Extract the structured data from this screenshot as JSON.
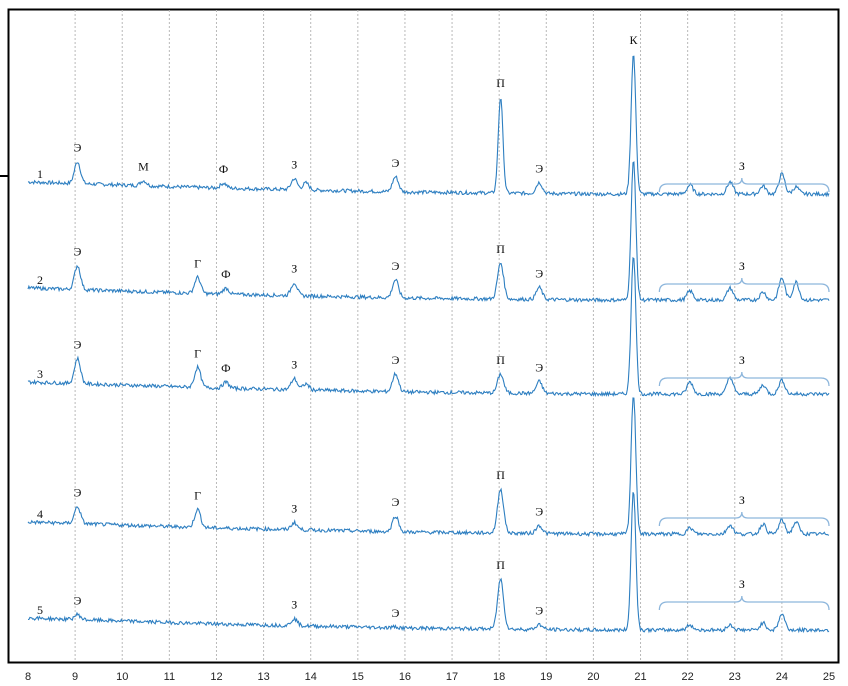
{
  "chart_data": {
    "type": "line",
    "title": "",
    "xlabel": "",
    "ylabel": "",
    "xlim": [
      8,
      25
    ],
    "x_ticks": [
      8,
      9,
      10,
      11,
      12,
      13,
      14,
      15,
      16,
      17,
      18,
      19,
      20,
      21,
      22,
      23,
      24,
      25
    ],
    "grid": "vertical dotted at each integer x",
    "color": "#2e7fc1",
    "series": [
      {
        "name": "1",
        "baseline": [
          [
            8,
            0.0
          ],
          [
            12,
            -0.3
          ],
          [
            16,
            -0.5
          ],
          [
            20,
            -0.6
          ],
          [
            25,
            -0.6
          ]
        ],
        "peaks": [
          {
            "x": 9.05,
            "h": 1.1,
            "label": "Э"
          },
          {
            "x": 10.45,
            "h": 0.25,
            "label": "М"
          },
          {
            "x": 12.15,
            "h": 0.25,
            "label": "Ф"
          },
          {
            "x": 13.65,
            "h": 0.55,
            "label": "З"
          },
          {
            "x": 13.9,
            "h": 0.35,
            "label": ""
          },
          {
            "x": 15.8,
            "h": 0.75,
            "label": "Э"
          },
          {
            "x": 18.03,
            "h": 4.8,
            "label": "П"
          },
          {
            "x": 18.85,
            "h": 0.55,
            "label": "Э"
          },
          {
            "x": 20.85,
            "h": 7.0,
            "label": "К"
          },
          {
            "x": 22.05,
            "h": 0.45,
            "label": ""
          },
          {
            "x": 22.9,
            "h": 0.6,
            "label": ""
          },
          {
            "x": 23.6,
            "h": 0.4,
            "label": ""
          },
          {
            "x": 24.0,
            "h": 1.0,
            "label": ""
          },
          {
            "x": 24.3,
            "h": 0.35,
            "label": ""
          }
        ]
      },
      {
        "name": "2",
        "baseline": [
          [
            8,
            0.0
          ],
          [
            12,
            -0.3
          ],
          [
            16,
            -0.5
          ],
          [
            20,
            -0.6
          ],
          [
            25,
            -0.6
          ]
        ],
        "peaks": [
          {
            "x": 9.05,
            "h": 1.2,
            "label": "Э"
          },
          {
            "x": 11.6,
            "h": 0.8,
            "label": "Г"
          },
          {
            "x": 12.2,
            "h": 0.3,
            "label": "Ф"
          },
          {
            "x": 13.65,
            "h": 0.65,
            "label": "З"
          },
          {
            "x": 15.8,
            "h": 0.9,
            "label": "Э"
          },
          {
            "x": 18.03,
            "h": 1.8,
            "label": "П"
          },
          {
            "x": 18.85,
            "h": 0.6,
            "label": "Э"
          },
          {
            "x": 20.85,
            "h": 7.0,
            "label": ""
          },
          {
            "x": 22.05,
            "h": 0.45,
            "label": ""
          },
          {
            "x": 22.9,
            "h": 0.6,
            "label": ""
          },
          {
            "x": 23.6,
            "h": 0.4,
            "label": ""
          },
          {
            "x": 24.0,
            "h": 1.1,
            "label": ""
          },
          {
            "x": 24.3,
            "h": 0.9,
            "label": ""
          }
        ]
      },
      {
        "name": "3",
        "baseline": [
          [
            8,
            0.0
          ],
          [
            12,
            -0.3
          ],
          [
            16,
            -0.5
          ],
          [
            20,
            -0.6
          ],
          [
            25,
            -0.6
          ]
        ],
        "peaks": [
          {
            "x": 9.05,
            "h": 1.25,
            "label": "Э"
          },
          {
            "x": 11.6,
            "h": 1.0,
            "label": "Г"
          },
          {
            "x": 12.2,
            "h": 0.3,
            "label": "Ф"
          },
          {
            "x": 13.65,
            "h": 0.55,
            "label": "З"
          },
          {
            "x": 13.9,
            "h": 0.3,
            "label": ""
          },
          {
            "x": 15.8,
            "h": 0.9,
            "label": "Э"
          },
          {
            "x": 18.03,
            "h": 0.95,
            "label": "П"
          },
          {
            "x": 18.85,
            "h": 0.6,
            "label": "Э"
          },
          {
            "x": 20.85,
            "h": 7.0,
            "label": ""
          },
          {
            "x": 22.05,
            "h": 0.6,
            "label": ""
          },
          {
            "x": 22.9,
            "h": 0.85,
            "label": ""
          },
          {
            "x": 23.6,
            "h": 0.45,
            "label": ""
          },
          {
            "x": 24.0,
            "h": 0.7,
            "label": ""
          }
        ]
      },
      {
        "name": "4",
        "baseline": [
          [
            8,
            0.0
          ],
          [
            12,
            -0.3
          ],
          [
            16,
            -0.5
          ],
          [
            20,
            -0.6
          ],
          [
            25,
            -0.6
          ]
        ],
        "peaks": [
          {
            "x": 9.05,
            "h": 0.85,
            "label": "Э"
          },
          {
            "x": 11.6,
            "h": 0.9,
            "label": "Г"
          },
          {
            "x": 13.65,
            "h": 0.35,
            "label": "З"
          },
          {
            "x": 15.8,
            "h": 0.8,
            "label": "Э"
          },
          {
            "x": 18.03,
            "h": 2.2,
            "label": "П"
          },
          {
            "x": 18.85,
            "h": 0.4,
            "label": "Э"
          },
          {
            "x": 20.85,
            "h": 7.0,
            "label": ""
          },
          {
            "x": 22.05,
            "h": 0.3,
            "label": ""
          },
          {
            "x": 22.9,
            "h": 0.45,
            "label": ""
          },
          {
            "x": 23.6,
            "h": 0.5,
            "label": ""
          },
          {
            "x": 24.0,
            "h": 0.7,
            "label": ""
          },
          {
            "x": 24.3,
            "h": 0.6,
            "label": ""
          }
        ]
      },
      {
        "name": "5",
        "baseline": [
          [
            8,
            0.0
          ],
          [
            12,
            -0.3
          ],
          [
            16,
            -0.5
          ],
          [
            20,
            -0.6
          ],
          [
            25,
            -0.6
          ]
        ],
        "peaks": [
          {
            "x": 9.05,
            "h": 0.25,
            "label": "Э"
          },
          {
            "x": 13.65,
            "h": 0.35,
            "label": "З"
          },
          {
            "x": 15.8,
            "h": 0.05,
            "label": "Э"
          },
          {
            "x": 18.03,
            "h": 2.5,
            "label": "П"
          },
          {
            "x": 18.85,
            "h": 0.25,
            "label": "Э"
          },
          {
            "x": 20.85,
            "h": 7.0,
            "label": ""
          },
          {
            "x": 22.05,
            "h": 0.25,
            "label": ""
          },
          {
            "x": 22.9,
            "h": 0.25,
            "label": ""
          },
          {
            "x": 23.6,
            "h": 0.35,
            "label": ""
          },
          {
            "x": 24.0,
            "h": 0.8,
            "label": ""
          }
        ]
      }
    ],
    "brackets": [
      {
        "label": "З"
      },
      {
        "label": "З"
      },
      {
        "label": "З"
      },
      {
        "label": "З"
      },
      {
        "label": "З"
      }
    ]
  }
}
